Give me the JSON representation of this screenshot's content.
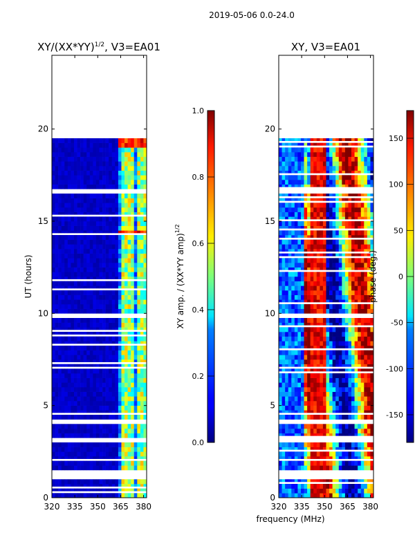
{
  "suptitle": "2019-05-06 0.0-24.0",
  "shared_xlabel": "frequency (MHz)",
  "chart_data": [
    {
      "type": "heatmap",
      "title_main": "XY/(XX*YY)",
      "title_sup": "1/2",
      "title_tail": ", V3=EA01",
      "xlabel": "frequency (MHz)",
      "ylabel": "UT (hours)",
      "xlim": [
        320,
        382
      ],
      "ylim": [
        0,
        24
      ],
      "xticks": [
        320,
        335,
        350,
        365,
        380
      ],
      "yticks": [
        0,
        5,
        10,
        15,
        20
      ],
      "data_extent_hours": [
        0,
        19.3
      ],
      "bright_channels_mhz": [
        365.5,
        368.5,
        372.0,
        375.0,
        378.0,
        381.0
      ],
      "colorbar": {
        "label_main": "XY amp. / (XX*YY amp)",
        "label_sup": "1/2",
        "range": [
          0.0,
          1.0
        ],
        "ticks": [
          "0.0",
          "0.2",
          "0.4",
          "0.6",
          "0.8",
          "1.0"
        ]
      }
    },
    {
      "type": "heatmap",
      "title": "XY, V3=EA01",
      "xlabel": "frequency (MHz)",
      "ylim": [
        0,
        24
      ],
      "xlim": [
        320,
        382
      ],
      "xticks": [
        320,
        335,
        350,
        365,
        380
      ],
      "yticks": [
        0,
        5,
        10,
        15,
        20
      ],
      "data_extent_hours": [
        0,
        19.3
      ],
      "colorbar": {
        "label": "phase (deg.)",
        "range": [
          -180,
          180
        ],
        "ticks": [
          "-150",
          "-100",
          "-50",
          "0",
          "50",
          "100",
          "150"
        ]
      }
    }
  ],
  "gap_hours": [
    [
      0.85,
      1.3
    ],
    [
      16.3,
      16.6
    ],
    [
      14.1,
      14.2
    ],
    [
      9.75,
      9.9
    ],
    [
      4.0,
      4.15
    ],
    [
      3.0,
      3.1
    ]
  ]
}
